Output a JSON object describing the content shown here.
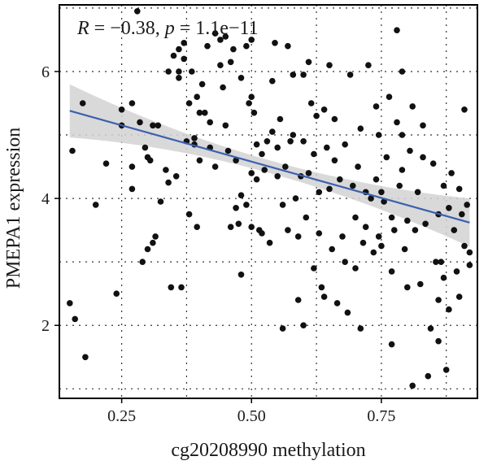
{
  "chart_data": {
    "type": "scatter",
    "xlabel": "cg20208990 methylation",
    "ylabel": "PMEPA1 expression",
    "annotation": {
      "r_symbol": "R",
      "r_text": " = −0.38, ",
      "p_symbol": "p",
      "p_text": " = 1.1e−11"
    },
    "xlim": [
      0.13,
      0.935
    ],
    "ylim": [
      0.85,
      7.05
    ],
    "x_ticks": [
      0.25,
      0.5,
      0.75
    ],
    "x_tick_labels": [
      "0.25",
      "0.50",
      "0.75"
    ],
    "y_ticks": [
      2,
      4,
      6
    ],
    "y_tick_labels": [
      "2",
      "4",
      "6"
    ],
    "grid": "dotted",
    "colors": {
      "points": "#111111",
      "fit_line": "#3b5fb0",
      "ci_band": "#d2d2d2",
      "frame": "#000000"
    },
    "fit": {
      "x_start": 0.15,
      "x_end": 0.92,
      "y_start": 5.38,
      "y_end": 3.62,
      "ci_start": 0.42,
      "ci_mid": 0.1,
      "ci_end": 0.38
    },
    "points": [
      [
        0.15,
        2.35
      ],
      [
        0.155,
        4.75
      ],
      [
        0.16,
        2.1
      ],
      [
        0.175,
        5.5
      ],
      [
        0.18,
        1.5
      ],
      [
        0.24,
        2.5
      ],
      [
        0.25,
        5.15
      ],
      [
        0.25,
        5.4
      ],
      [
        0.27,
        5.5
      ],
      [
        0.27,
        4.5
      ],
      [
        0.27,
        4.15
      ],
      [
        0.28,
        6.95
      ],
      [
        0.285,
        5.2
      ],
      [
        0.29,
        3.0
      ],
      [
        0.295,
        4.8
      ],
      [
        0.3,
        4.65
      ],
      [
        0.3,
        3.2
      ],
      [
        0.305,
        4.6
      ],
      [
        0.31,
        5.15
      ],
      [
        0.31,
        3.3
      ],
      [
        0.315,
        3.4
      ],
      [
        0.32,
        5.15
      ],
      [
        0.325,
        3.95
      ],
      [
        0.335,
        4.45
      ],
      [
        0.34,
        4.25
      ],
      [
        0.34,
        6.0
      ],
      [
        0.345,
        2.6
      ],
      [
        0.35,
        6.25
      ],
      [
        0.355,
        4.35
      ],
      [
        0.36,
        6.0
      ],
      [
        0.36,
        6.35
      ],
      [
        0.365,
        2.6
      ],
      [
        0.37,
        6.2
      ],
      [
        0.37,
        6.45
      ],
      [
        0.375,
        4.9
      ],
      [
        0.38,
        5.5
      ],
      [
        0.38,
        3.75
      ],
      [
        0.385,
        6.0
      ],
      [
        0.39,
        4.85
      ],
      [
        0.39,
        4.95
      ],
      [
        0.395,
        5.6
      ],
      [
        0.4,
        5.35
      ],
      [
        0.4,
        4.6
      ],
      [
        0.405,
        5.8
      ],
      [
        0.41,
        5.35
      ],
      [
        0.42,
        5.2
      ],
      [
        0.42,
        4.8
      ],
      [
        0.43,
        6.6
      ],
      [
        0.43,
        4.5
      ],
      [
        0.44,
        6.5
      ],
      [
        0.44,
        6.1
      ],
      [
        0.445,
        5.75
      ],
      [
        0.45,
        6.55
      ],
      [
        0.45,
        5.15
      ],
      [
        0.455,
        4.75
      ],
      [
        0.46,
        3.55
      ],
      [
        0.465,
        6.35
      ],
      [
        0.47,
        4.6
      ],
      [
        0.47,
        3.85
      ],
      [
        0.475,
        3.6
      ],
      [
        0.48,
        5.9
      ],
      [
        0.48,
        4.05
      ],
      [
        0.48,
        2.8
      ],
      [
        0.49,
        6.4
      ],
      [
        0.49,
        3.9
      ],
      [
        0.495,
        5.5
      ],
      [
        0.5,
        5.6
      ],
      [
        0.5,
        4.4
      ],
      [
        0.5,
        6.5
      ],
      [
        0.505,
        5.35
      ],
      [
        0.51,
        4.85
      ],
      [
        0.51,
        4.3
      ],
      [
        0.515,
        3.5
      ],
      [
        0.52,
        3.45
      ],
      [
        0.52,
        4.7
      ],
      [
        0.525,
        4.45
      ],
      [
        0.53,
        4.9
      ],
      [
        0.535,
        3.3
      ],
      [
        0.54,
        5.85
      ],
      [
        0.54,
        5.05
      ],
      [
        0.545,
        6.45
      ],
      [
        0.55,
        4.8
      ],
      [
        0.55,
        4.35
      ],
      [
        0.555,
        5.25
      ],
      [
        0.56,
        3.9
      ],
      [
        0.56,
        1.95
      ],
      [
        0.565,
        4.5
      ],
      [
        0.57,
        3.5
      ],
      [
        0.57,
        6.4
      ],
      [
        0.575,
        4.9
      ],
      [
        0.58,
        5.95
      ],
      [
        0.58,
        5.0
      ],
      [
        0.585,
        4.0
      ],
      [
        0.59,
        3.4
      ],
      [
        0.59,
        2.4
      ],
      [
        0.595,
        4.35
      ],
      [
        0.6,
        5.95
      ],
      [
        0.6,
        4.9
      ],
      [
        0.605,
        3.7
      ],
      [
        0.61,
        4.4
      ],
      [
        0.61,
        6.15
      ],
      [
        0.615,
        5.5
      ],
      [
        0.62,
        2.9
      ],
      [
        0.62,
        4.7
      ],
      [
        0.625,
        5.3
      ],
      [
        0.63,
        4.1
      ],
      [
        0.63,
        3.45
      ],
      [
        0.635,
        2.6
      ],
      [
        0.64,
        5.4
      ],
      [
        0.645,
        4.8
      ],
      [
        0.65,
        6.1
      ],
      [
        0.65,
        4.15
      ],
      [
        0.655,
        3.2
      ],
      [
        0.66,
        5.25
      ],
      [
        0.66,
        4.6
      ],
      [
        0.665,
        2.35
      ],
      [
        0.67,
        4.3
      ],
      [
        0.675,
        3.4
      ],
      [
        0.68,
        4.85
      ],
      [
        0.68,
        3.0
      ],
      [
        0.685,
        2.2
      ],
      [
        0.69,
        5.95
      ],
      [
        0.695,
        4.2
      ],
      [
        0.7,
        3.7
      ],
      [
        0.7,
        2.9
      ],
      [
        0.705,
        4.5
      ],
      [
        0.71,
        5.1
      ],
      [
        0.715,
        3.3
      ],
      [
        0.72,
        4.1
      ],
      [
        0.72,
        3.55
      ],
      [
        0.725,
        6.1
      ],
      [
        0.73,
        4.0
      ],
      [
        0.735,
        3.15
      ],
      [
        0.74,
        4.3
      ],
      [
        0.74,
        5.45
      ],
      [
        0.745,
        3.4
      ],
      [
        0.75,
        4.1
      ],
      [
        0.75,
        3.25
      ],
      [
        0.755,
        3.95
      ],
      [
        0.76,
        4.65
      ],
      [
        0.765,
        5.6
      ],
      [
        0.77,
        3.7
      ],
      [
        0.77,
        2.85
      ],
      [
        0.775,
        3.5
      ],
      [
        0.78,
        5.2
      ],
      [
        0.78,
        6.65
      ],
      [
        0.785,
        4.2
      ],
      [
        0.79,
        5.0
      ],
      [
        0.79,
        6.0
      ],
      [
        0.795,
        3.2
      ],
      [
        0.8,
        3.65
      ],
      [
        0.8,
        2.6
      ],
      [
        0.805,
        4.75
      ],
      [
        0.81,
        1.05
      ],
      [
        0.81,
        5.45
      ],
      [
        0.815,
        3.5
      ],
      [
        0.82,
        4.1
      ],
      [
        0.825,
        2.65
      ],
      [
        0.83,
        4.65
      ],
      [
        0.835,
        3.6
      ],
      [
        0.84,
        1.2
      ],
      [
        0.845,
        1.95
      ],
      [
        0.85,
        4.55
      ],
      [
        0.855,
        3.0
      ],
      [
        0.86,
        2.4
      ],
      [
        0.86,
        3.75
      ],
      [
        0.865,
        3.0
      ],
      [
        0.87,
        4.2
      ],
      [
        0.87,
        2.75
      ],
      [
        0.875,
        1.3
      ],
      [
        0.88,
        3.85
      ],
      [
        0.88,
        2.25
      ],
      [
        0.885,
        4.4
      ],
      [
        0.89,
        3.5
      ],
      [
        0.895,
        2.85
      ],
      [
        0.9,
        4.15
      ],
      [
        0.9,
        2.45
      ],
      [
        0.905,
        3.75
      ],
      [
        0.91,
        3.25
      ],
      [
        0.91,
        5.4
      ],
      [
        0.915,
        3.9
      ],
      [
        0.92,
        3.15
      ],
      [
        0.92,
        2.95
      ],
      [
        0.2,
        3.9
      ],
      [
        0.22,
        4.55
      ],
      [
        0.36,
        5.9
      ],
      [
        0.395,
        3.55
      ],
      [
        0.415,
        6.4
      ],
      [
        0.46,
        6.15
      ],
      [
        0.6,
        2.0
      ],
      [
        0.64,
        2.45
      ],
      [
        0.71,
        1.95
      ],
      [
        0.77,
        1.7
      ],
      [
        0.86,
        1.75
      ],
      [
        0.745,
        5.0
      ],
      [
        0.5,
        3.55
      ],
      [
        0.79,
        4.45
      ],
      [
        0.83,
        5.15
      ]
    ]
  }
}
